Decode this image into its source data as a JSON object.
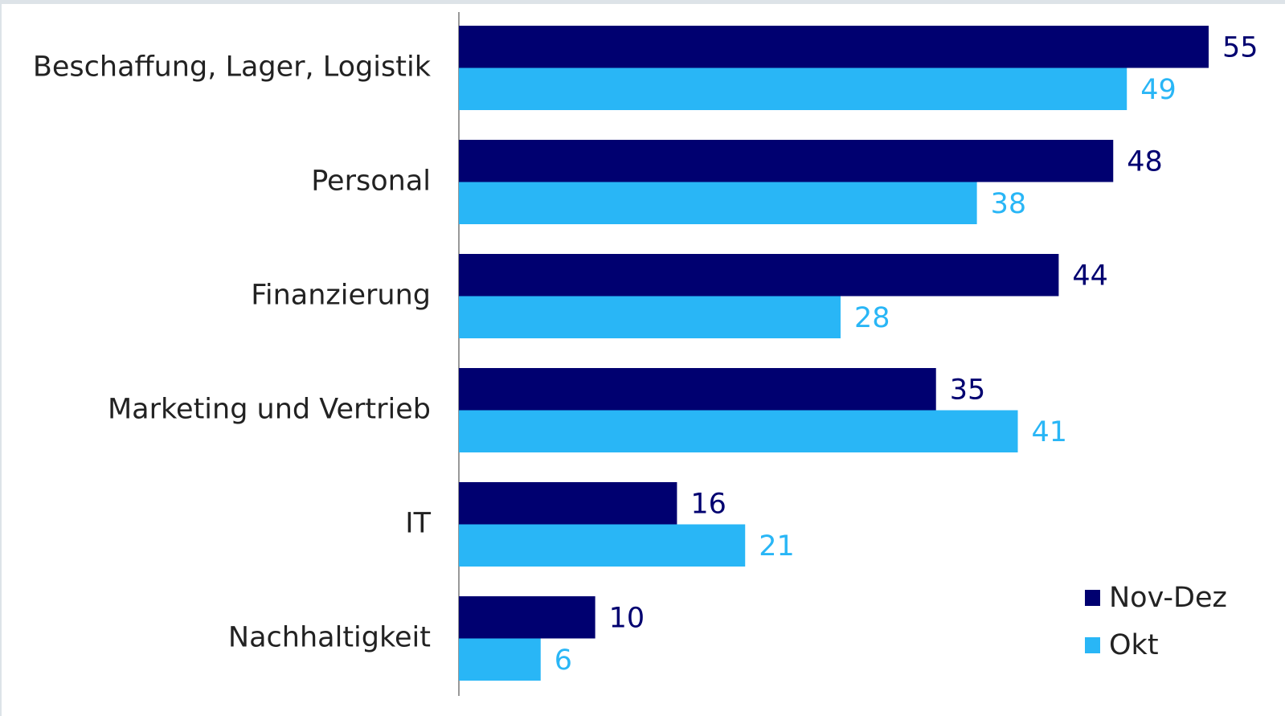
{
  "chart_data": {
    "type": "bar",
    "orientation": "horizontal",
    "categories": [
      "Beschaffung, Lager, Logistik",
      "Personal",
      "Finanzierung",
      "Marketing und Vertrieb",
      "IT",
      "Nachhaltigkeit"
    ],
    "series": [
      {
        "name": "Nov-Dez",
        "color": "#000070",
        "values": [
          55,
          48,
          44,
          35,
          16,
          10
        ]
      },
      {
        "name": "Okt",
        "color": "#29b6f6",
        "values": [
          49,
          38,
          28,
          41,
          21,
          6
        ]
      }
    ],
    "legend": "lower right"
  }
}
